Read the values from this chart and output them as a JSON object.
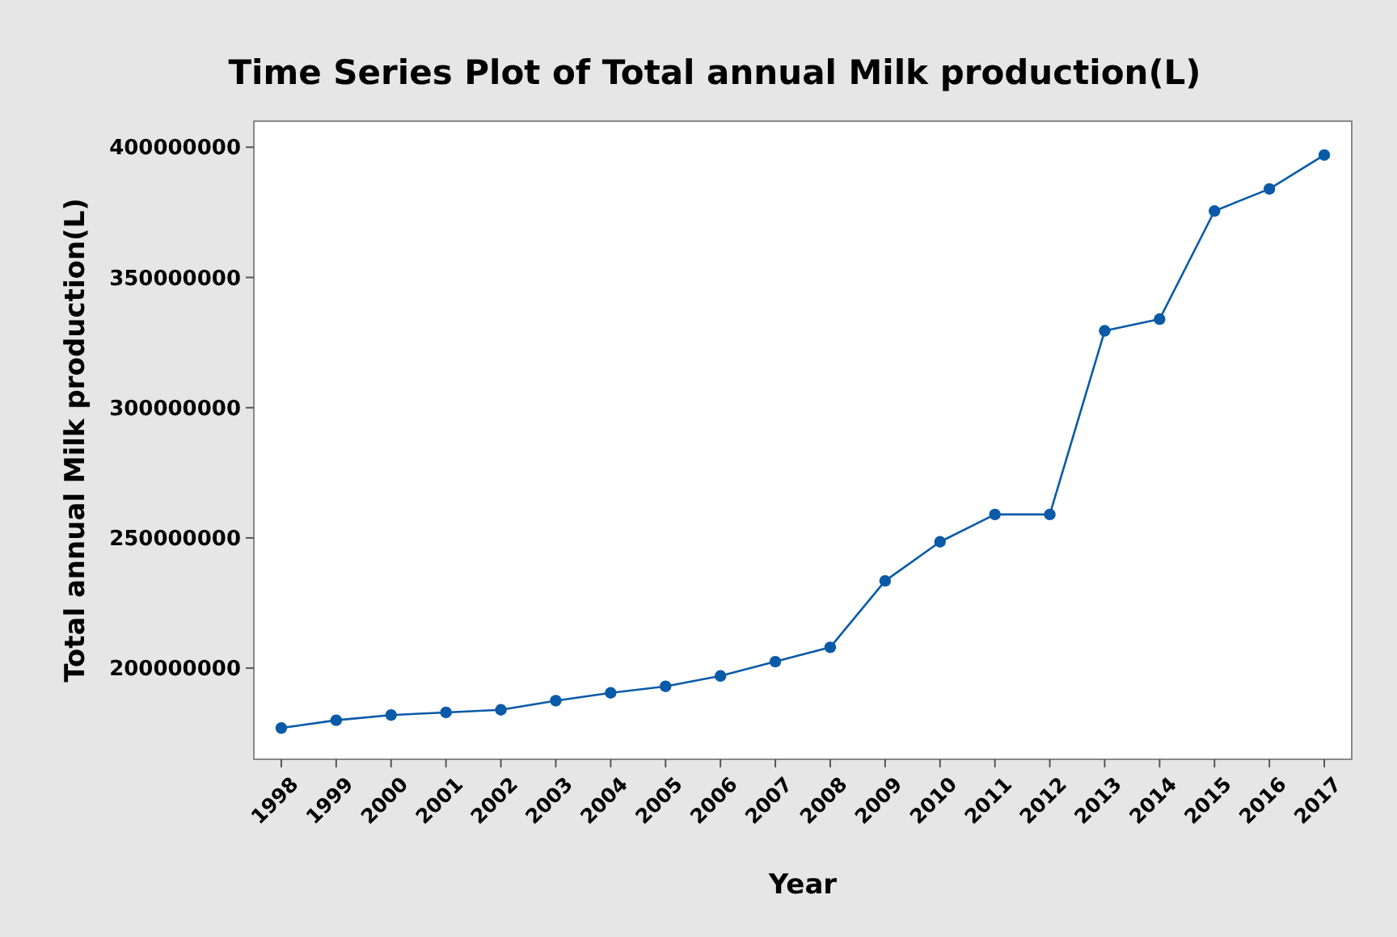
{
  "chart_data": {
    "type": "line",
    "title": "Time Series Plot of Total annual Milk production(L)",
    "xlabel": "Year",
    "ylabel": "Total annual Milk production(L)",
    "categories": [
      "1998",
      "1999",
      "2000",
      "2001",
      "2002",
      "2003",
      "2004",
      "2005",
      "2006",
      "2007",
      "2008",
      "2009",
      "2010",
      "2011",
      "2012",
      "2013",
      "2014",
      "2015",
      "2016",
      "2017"
    ],
    "series": [
      {
        "color": "#0a5aa8",
        "values": [
          177000000,
          180000000,
          182000000,
          183000000,
          184000000,
          187500000,
          190500000,
          193000000,
          197000000,
          202500000,
          208000000,
          233500000,
          248500000,
          259000000,
          259000000,
          329500000,
          334000000,
          375500000,
          384000000,
          397000000
        ]
      }
    ],
    "ylim": [
      165000000,
      410000000
    ],
    "yticks": [
      200000000,
      250000000,
      300000000,
      350000000,
      400000000
    ],
    "marker": "circle",
    "line_style": "solid"
  }
}
